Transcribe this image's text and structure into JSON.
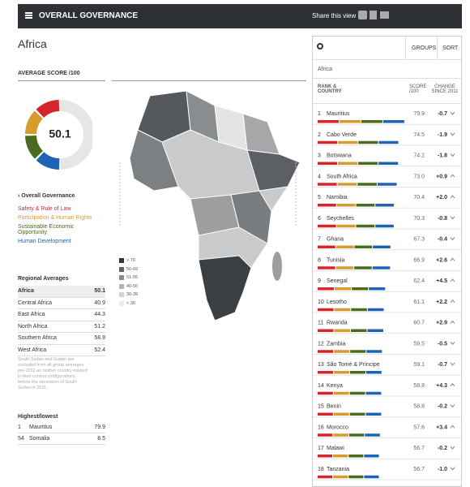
{
  "header": {
    "title": "OVERALL GOVERNANCE",
    "share": "Share this view"
  },
  "page_title": "Africa",
  "average": {
    "label": "AVERAGE SCORE /100",
    "score": 50.1
  },
  "categories": {
    "title": "Overall Governance",
    "items": [
      "Safety & Rule of Law",
      "Participation & Human Rights",
      "Sustainable Economic Opportunity",
      "Human Development"
    ]
  },
  "regional": {
    "title": "Regional Averages",
    "rows": [
      [
        "Africa",
        50.1
      ],
      [
        "Central Africa",
        40.9
      ],
      [
        "East Africa",
        44.3
      ],
      [
        "North Africa",
        51.2
      ],
      [
        "Southern Africa",
        58.9
      ],
      [
        "West Africa",
        52.4
      ]
    ]
  },
  "note": "South Sudan and Sudan are excluded from all group averages pre-2011 as neither country existed in their current configurations before the secession of South Sudan in 2011.",
  "highest_lowest": {
    "title": "Highest/lowest",
    "rows": [
      [
        1,
        "Mauritius",
        79.9
      ],
      [
        54,
        "Somalia",
        8.5
      ]
    ]
  },
  "map_legend": [
    "> 70",
    "56-69",
    "51-55",
    "40-50",
    "30-39",
    "< 30"
  ],
  "panel": {
    "buttons": [
      "GROUPS",
      "SORT"
    ],
    "region": "Africa",
    "headers": {
      "rank": "RANK & COUNTRY",
      "score": "SCORE /100",
      "change": "CHANGE SINCE 2011"
    },
    "rows": [
      {
        "rank": 1,
        "country": "Mauritius",
        "score": "79.9",
        "change": "-0.7"
      },
      {
        "rank": 2,
        "country": "Cabo Verde",
        "score": "74.5",
        "change": "-1.9"
      },
      {
        "rank": 3,
        "country": "Botswana",
        "score": "74.2",
        "change": "-1.8"
      },
      {
        "rank": 4,
        "country": "South Africa",
        "score": "73.0",
        "change": "+0.9"
      },
      {
        "rank": 5,
        "country": "Namibia",
        "score": "70.4",
        "change": "+2.0"
      },
      {
        "rank": 6,
        "country": "Seychelles",
        "score": "70.3",
        "change": "-0.8"
      },
      {
        "rank": 7,
        "country": "Ghana",
        "score": "67.3",
        "change": "-0.4"
      },
      {
        "rank": 8,
        "country": "Tunisia",
        "score": "66.9",
        "change": "+2.6"
      },
      {
        "rank": 9,
        "country": "Senegal",
        "score": "62.4",
        "change": "+4.5"
      },
      {
        "rank": 10,
        "country": "Lesotho",
        "score": "61.1",
        "change": "+2.2"
      },
      {
        "rank": 11,
        "country": "Rwanda",
        "score": "60.7",
        "change": "+2.9"
      },
      {
        "rank": 12,
        "country": "Zambia",
        "score": "59.5",
        "change": "-0.5"
      },
      {
        "rank": 13,
        "country": "São Tomé & Príncipe",
        "score": "59.1",
        "change": "-0.7"
      },
      {
        "rank": 14,
        "country": "Kenya",
        "score": "58.8",
        "change": "+4.3"
      },
      {
        "rank": 15,
        "country": "Benin",
        "score": "58.8",
        "change": "-0.2"
      },
      {
        "rank": 16,
        "country": "Morocco",
        "score": "57.6",
        "change": "+3.4"
      },
      {
        "rank": 17,
        "country": "Malawi",
        "score": "56.7",
        "change": "-0.2"
      },
      {
        "rank": 18,
        "country": "Tanzania",
        "score": "56.7",
        "change": "-1.0"
      }
    ]
  }
}
